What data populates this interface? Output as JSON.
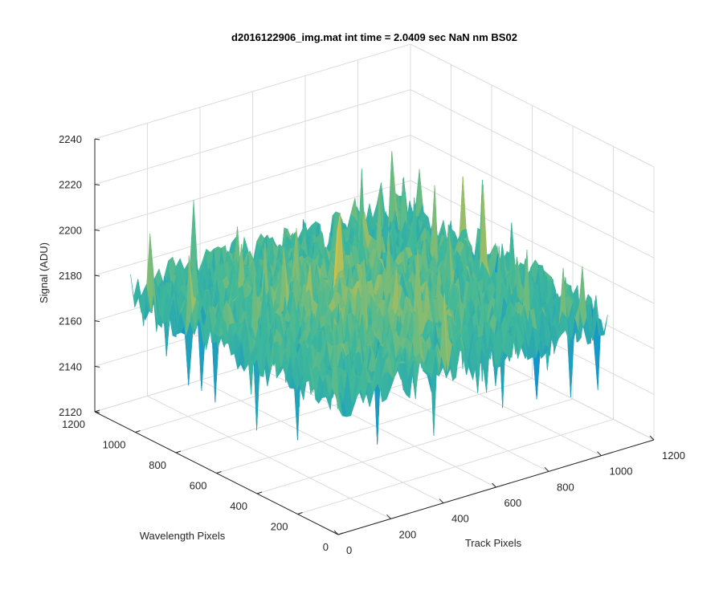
{
  "chart_data": {
    "type": "surface",
    "title": "d2016122906_img.mat int time = 2.0409 sec  NaN nm BS02",
    "xlabel": "Track Pixels",
    "ylabel": "Wavelength Pixels",
    "zlabel": "Signal (ADU)",
    "xlim": [
      0,
      1200
    ],
    "ylim": [
      0,
      1200
    ],
    "zlim": [
      2120,
      2240
    ],
    "xticks": [
      "0",
      "200",
      "400",
      "600",
      "800",
      "1000",
      "1200"
    ],
    "yticks": [
      "0",
      "200",
      "400",
      "600",
      "800",
      "1000",
      "1200"
    ],
    "zticks": [
      "2120",
      "2140",
      "2160",
      "2180",
      "2200",
      "2220",
      "2240"
    ],
    "grid": true,
    "colormap": "parula",
    "colors": {
      "low": "#0a8fd6",
      "mid": "#3fb89a",
      "high": "#e8c23a"
    },
    "data_extent": {
      "x": [
        0,
        1024
      ],
      "y": [
        0,
        1024
      ]
    },
    "signal_summary": {
      "mean": 2185,
      "min_spike": 2128,
      "max_spike": 2232
    }
  }
}
